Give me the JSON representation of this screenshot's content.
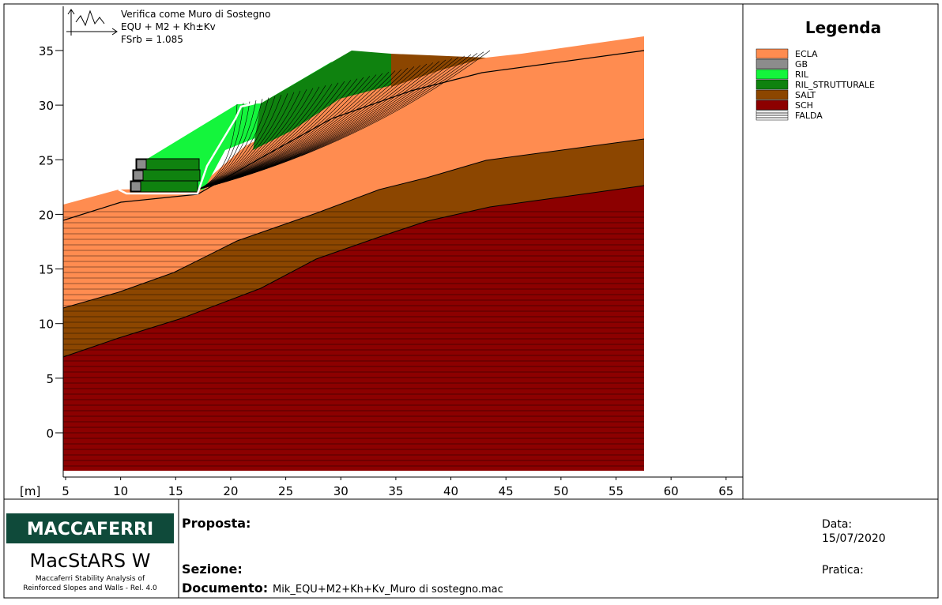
{
  "plot": {
    "title_lines": [
      "Verifica come Muro di Sostegno",
      "EQU + M2 + Kh±Kv",
      "FSrb = 1.085"
    ],
    "unit_label": "[m]",
    "xticks": [
      5,
      10,
      15,
      20,
      25,
      30,
      35,
      40,
      45,
      50,
      55,
      60,
      65
    ],
    "yticks": [
      0,
      5,
      10,
      15,
      20,
      25,
      30,
      35
    ]
  },
  "legend": {
    "title": "Legenda",
    "items": [
      {
        "name": "ECLA",
        "color": "#ff8c50"
      },
      {
        "name": "GB",
        "color": "#8c8c8c"
      },
      {
        "name": "RIL",
        "color": "#14f53c"
      },
      {
        "name": "RIL_STRUTTURALE",
        "color": "#0f820f"
      },
      {
        "name": "SALT",
        "color": "#8c4600"
      },
      {
        "name": "SCH",
        "color": "#8c0000"
      },
      {
        "name": "FALDA",
        "color": "#ffffff"
      }
    ]
  },
  "footer": {
    "brand": "MACCAFERRI",
    "product": "MacStARS W",
    "product_sub": [
      "Maccaferri Stability Analysis of",
      "Reinforced Slopes and Walls - Rel. 4.0"
    ],
    "proposta_label": "Proposta:",
    "sezione_label": "Sezione:",
    "documento_label": "Documento:",
    "documento": "Mik_EQU+M2+Kh+Kv_Muro di sostegno.mac",
    "data_label": "Data:",
    "data": "15/07/2020",
    "pratica_label": "Pratica:"
  }
}
